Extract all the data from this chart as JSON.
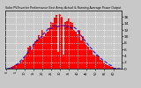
{
  "title": "Solar PV/Inverter Performance East Array Actual & Running Average Power Output",
  "bg_color": "#c8c8c8",
  "plot_bg_color": "#c8c8c8",
  "bar_color": "#ff0000",
  "avg_line_color": "#0000cc",
  "grid_color": "#ffffff",
  "n_bars": 65,
  "peak_index": 30,
  "peak_value": 17.0,
  "ymax": 18.0,
  "ymin": 0,
  "ytick_labels": [
    "0",
    "2",
    "4",
    "6",
    "8",
    "10",
    "12",
    "14",
    "16"
  ],
  "ytick_values": [
    0,
    2,
    4,
    6,
    8,
    10,
    12,
    14,
    16
  ]
}
